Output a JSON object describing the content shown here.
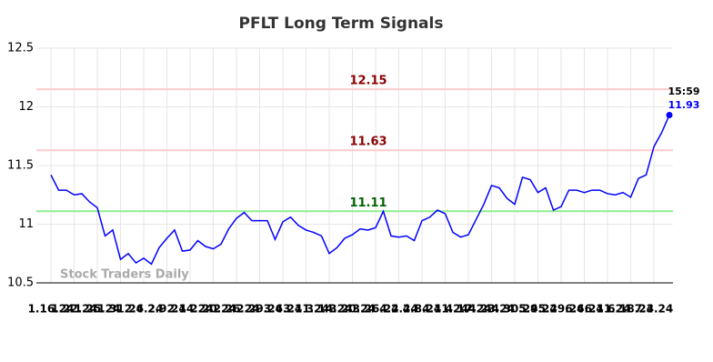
{
  "chart_data": {
    "type": "line",
    "title": "PFLT Long Term Signals",
    "categories": [
      "1.16.24",
      null,
      null,
      "1.22.24",
      null,
      null,
      "1.25.24",
      null,
      null,
      "1.31.24",
      null,
      null,
      "2.6.24",
      null,
      null,
      "2.9.24",
      null,
      null,
      "2.14.24",
      null,
      null,
      "2.20.24",
      null,
      null,
      "2.26.24",
      null,
      null,
      "2.29.24",
      null,
      null,
      "3.6.24",
      null,
      null,
      "3.11.24",
      null,
      null,
      "3.14.24",
      null,
      null,
      "3.20.24",
      null,
      null,
      "3.26.24",
      null,
      null,
      "4.2.24",
      null,
      null,
      "4.8.24",
      null,
      null,
      "4.11.24",
      null,
      null,
      "4.17.24",
      null,
      null,
      "4.23.24",
      null,
      null,
      "4.30.24",
      null,
      null,
      "5.9.24",
      null,
      null,
      "5.29.24",
      null,
      null,
      "6.6.24",
      null,
      null,
      "6.11.24",
      null,
      null,
      "6.18.24",
      null,
      null,
      "7.3.24",
      null,
      null
    ],
    "series": [
      {
        "color": "#0000ff",
        "values": [
          11.42,
          11.29,
          11.29,
          11.25,
          11.26,
          11.19,
          11.14,
          10.9,
          10.95,
          10.7,
          10.75,
          10.67,
          10.71,
          10.66,
          10.8,
          10.88,
          10.95,
          10.77,
          10.78,
          10.86,
          10.81,
          10.79,
          10.83,
          10.96,
          11.05,
          11.1,
          11.03,
          11.03,
          11.03,
          10.87,
          11.02,
          11.06,
          10.99,
          10.95,
          10.93,
          10.9,
          10.75,
          10.8,
          10.88,
          10.91,
          10.96,
          10.95,
          10.97,
          11.11,
          10.9,
          10.89,
          10.9,
          10.86,
          11.03,
          11.06,
          11.12,
          11.09,
          10.93,
          10.89,
          10.91,
          11.04,
          11.17,
          11.33,
          11.31,
          11.22,
          11.17,
          11.4,
          11.38,
          11.27,
          11.31,
          11.12,
          11.15,
          11.29,
          11.29,
          11.27,
          11.29,
          11.29,
          11.26,
          11.25,
          11.27,
          11.23,
          11.39,
          11.42,
          11.66,
          11.78,
          11.93
        ]
      }
    ],
    "levels": [
      {
        "value": 12.15,
        "color": "#ffcccc",
        "label_color": "#8b0000"
      },
      {
        "value": 11.63,
        "color": "#ffcccc",
        "label_color": "#8b0000"
      },
      {
        "value": 11.11,
        "color": "#90ee90",
        "label_color": "#006400"
      }
    ],
    "last_time": "15:59",
    "watermark": "Stock Traders Daily",
    "ylim": [
      10.5,
      12.5
    ],
    "yticks": [
      10.5,
      11,
      11.5,
      12,
      12.5
    ],
    "grid": true
  }
}
